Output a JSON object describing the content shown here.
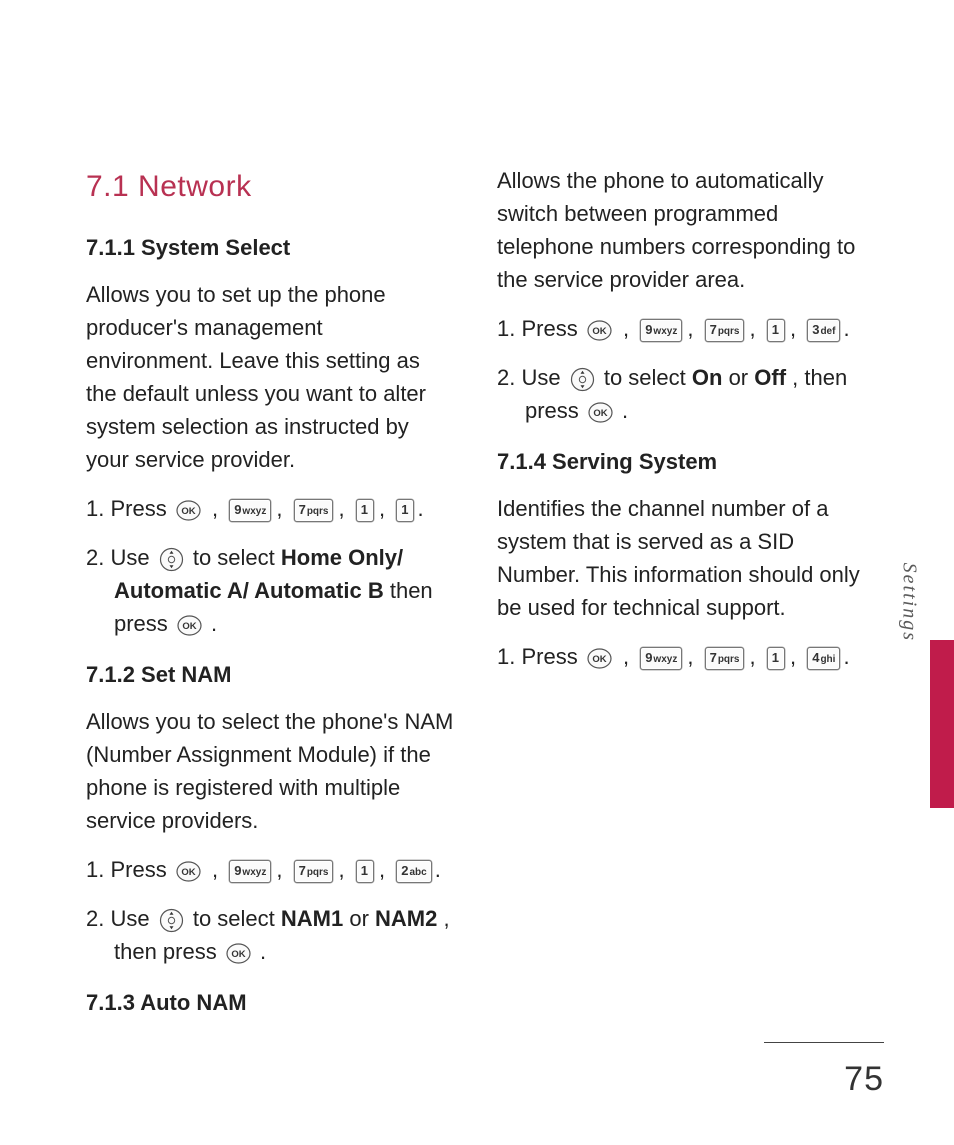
{
  "titleColor": "#b83152",
  "sideTab": {
    "label": "Settings",
    "color": "#c01c4b"
  },
  "pageNumber": "75",
  "keys": {
    "ok": "OK",
    "9": {
      "digit": "9",
      "letters": "wxyz"
    },
    "7": {
      "digit": "7",
      "letters": "pqrs"
    },
    "1": {
      "digit": "1",
      "letters": ""
    },
    "2": {
      "digit": "2",
      "letters": "abc"
    },
    "3": {
      "digit": "3",
      "letters": "def"
    },
    "4": {
      "digit": "4",
      "letters": "ghi"
    }
  },
  "h1": "7.1  Network",
  "s711": {
    "title": "7.1.1 System Select",
    "para": "Allows you to set up the phone producer's management environment. Leave this setting as the default unless you want to alter system selection as instructed by your service provider.",
    "step1_lead": "1. Press ",
    "step2_a": "2. Use ",
    "step2_b": " to select ",
    "step2_bold": "Home Only/ Automatic A/ Automatic B",
    "step2_c": " then press "
  },
  "s712": {
    "title": "7.1.2 Set NAM",
    "para": "Allows you to select the phone's NAM (Number Assignment Module) if the phone is registered with multiple service providers.",
    "step1_lead": "1. Press ",
    "step2_a": "2. Use ",
    "step2_b": " to select ",
    "step2_bold1": "NAM1",
    "step2_or": " or ",
    "step2_bold2": "NAM2",
    "step2_c": ", then press "
  },
  "s713": {
    "title": "7.1.3 Auto NAM",
    "para": "Allows the phone to automatically switch between programmed telephone numbers corresponding to the service provider area.",
    "step1_lead": "1. Press ",
    "step2_a": "2. Use ",
    "step2_b": " to select ",
    "step2_bold1": "On",
    "step2_or": " or ",
    "step2_bold2": "Off",
    "step2_c": ", then press "
  },
  "s714": {
    "title": "7.1.4 Serving System",
    "para": "Identifies the channel number of a system that is served as a SID Number. This information should only be used for technical support.",
    "step1_lead": "1. Press "
  }
}
